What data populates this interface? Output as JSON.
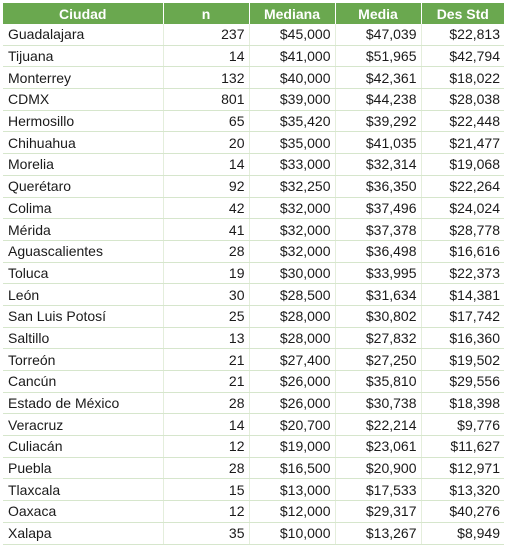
{
  "table": {
    "headers": [
      "Ciudad",
      "n",
      "Mediana",
      "Media",
      "Des Std"
    ],
    "rows": [
      [
        "Guadalajara",
        "237",
        "$45,000",
        "$47,039",
        "$22,813"
      ],
      [
        "Tijuana",
        "14",
        "$41,000",
        "$51,965",
        "$42,794"
      ],
      [
        "Monterrey",
        "132",
        "$40,000",
        "$42,361",
        "$18,022"
      ],
      [
        "CDMX",
        "801",
        "$39,000",
        "$44,238",
        "$28,038"
      ],
      [
        "Hermosillo",
        "65",
        "$35,420",
        "$39,292",
        "$22,448"
      ],
      [
        "Chihuahua",
        "20",
        "$35,000",
        "$41,035",
        "$21,477"
      ],
      [
        "Morelia",
        "14",
        "$33,000",
        "$32,314",
        "$19,068"
      ],
      [
        "Querétaro",
        "92",
        "$32,250",
        "$36,350",
        "$22,264"
      ],
      [
        "Colima",
        "42",
        "$32,000",
        "$37,496",
        "$24,024"
      ],
      [
        "Mérida",
        "41",
        "$32,000",
        "$37,378",
        "$28,778"
      ],
      [
        "Aguascalientes",
        "28",
        "$32,000",
        "$36,498",
        "$16,616"
      ],
      [
        "Toluca",
        "19",
        "$30,000",
        "$33,995",
        "$22,373"
      ],
      [
        "León",
        "30",
        "$28,500",
        "$31,634",
        "$14,381"
      ],
      [
        "San Luis Potosí",
        "25",
        "$28,000",
        "$30,802",
        "$17,742"
      ],
      [
        "Saltillo",
        "13",
        "$28,000",
        "$27,832",
        "$16,360"
      ],
      [
        "Torreón",
        "21",
        "$27,400",
        "$27,250",
        "$19,502"
      ],
      [
        "Cancún",
        "21",
        "$26,000",
        "$35,810",
        "$29,556"
      ],
      [
        "Estado de México",
        "28",
        "$26,000",
        "$30,738",
        "$18,398"
      ],
      [
        "Veracruz",
        "14",
        "$20,700",
        "$22,214",
        "$9,776"
      ],
      [
        "Culiacán",
        "12",
        "$19,000",
        "$23,061",
        "$11,627"
      ],
      [
        "Puebla",
        "28",
        "$16,500",
        "$20,900",
        "$12,971"
      ],
      [
        "Tlaxcala",
        "15",
        "$13,000",
        "$17,533",
        "$13,320"
      ],
      [
        "Oaxaca",
        "12",
        "$12,000",
        "$29,317",
        "$40,276"
      ],
      [
        "Xalapa",
        "35",
        "$10,000",
        "$13,267",
        "$8,949"
      ]
    ]
  },
  "colors": {
    "header_bg": "#6aa84f",
    "header_text": "#ffffff",
    "row_border": "#d6e6cc"
  }
}
